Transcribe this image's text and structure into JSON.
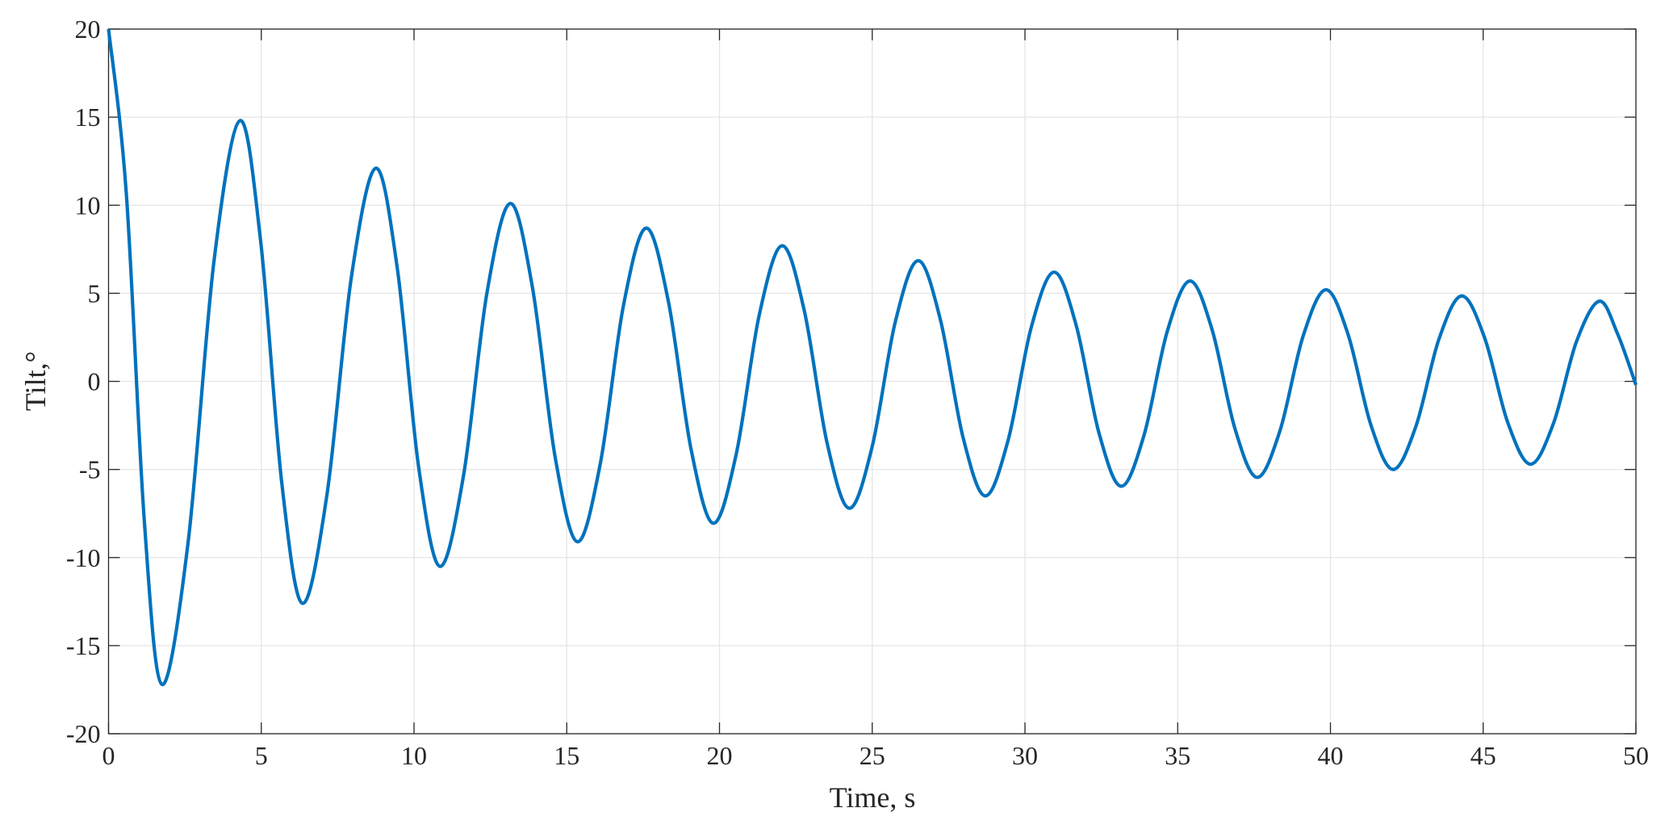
{
  "chart_data": {
    "type": "line",
    "xlabel": "Time, s",
    "ylabel": "Tilt,°",
    "xlim": [
      0,
      50
    ],
    "ylim": [
      -20,
      20
    ],
    "xticks": [
      0,
      5,
      10,
      15,
      20,
      25,
      30,
      35,
      40,
      45,
      50
    ],
    "yticks": [
      -20,
      -15,
      -10,
      -5,
      0,
      5,
      10,
      15,
      20
    ],
    "grid": true,
    "series": [
      {
        "color": "#0072bd",
        "x": [
          0,
          0.58,
          1.17,
          1.75,
          2.6,
          3.45,
          4.3,
          4.98,
          5.67,
          6.35,
          7.15,
          7.95,
          8.75,
          9.45,
          10.15,
          10.85,
          11.62,
          12.38,
          13.15,
          13.88,
          14.62,
          15.35,
          16.1,
          16.85,
          17.6,
          18.33,
          19.07,
          19.8,
          20.55,
          21.3,
          22.05,
          22.78,
          23.52,
          24.25,
          25.0,
          25.75,
          26.5,
          27.23,
          27.97,
          28.7,
          29.45,
          30.2,
          30.95,
          31.68,
          32.42,
          33.15,
          33.9,
          34.65,
          35.4,
          36.13,
          36.87,
          37.6,
          38.35,
          39.1,
          39.85,
          40.58,
          41.32,
          42.05,
          42.8,
          43.55,
          44.3,
          45.05,
          45.8,
          46.55,
          47.3,
          48.05,
          48.8,
          49.4,
          50
        ],
        "values": [
          20,
          10.7,
          -7.9,
          -17.2,
          -9.2,
          6.8,
          14.8,
          7.95,
          -5.75,
          -12.6,
          -6.43,
          5.93,
          12.1,
          6.45,
          -4.85,
          -10.5,
          -5.35,
          4.95,
          10.1,
          5.3,
          -4.3,
          -9.1,
          -4.65,
          4.25,
          8.7,
          4.51,
          -3.86,
          -8.05,
          -4.11,
          3.76,
          7.7,
          3.98,
          -3.48,
          -7.2,
          -3.69,
          3.34,
          6.85,
          3.51,
          -3.16,
          -6.5,
          -3.33,
          3.03,
          6.2,
          3.16,
          -2.91,
          -5.95,
          -3.04,
          2.79,
          5.7,
          2.91,
          -2.66,
          -5.45,
          -2.79,
          2.54,
          5.2,
          2.65,
          -2.45,
          -5.0,
          -2.54,
          2.39,
          4.85,
          2.46,
          -2.31,
          -4.7,
          -2.39,
          2.24,
          4.55,
          2.7,
          -0.2
        ]
      }
    ]
  }
}
